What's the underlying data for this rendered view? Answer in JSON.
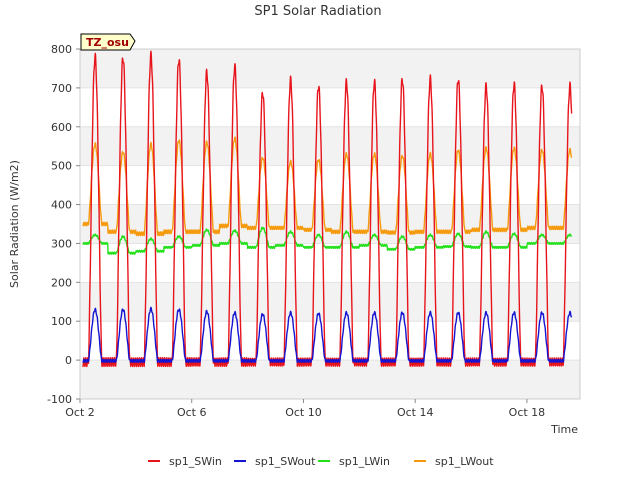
{
  "chart_data": {
    "type": "line",
    "title": "SP1 Solar Radiation",
    "xlabel": "Time",
    "ylabel": "Solar Radiation (W/m2)",
    "badge": "TZ_osu",
    "xlim": [
      2.0,
      19.9
    ],
    "ylim": [
      -100,
      800
    ],
    "yticks": [
      -100,
      0,
      100,
      200,
      300,
      400,
      500,
      600,
      700,
      800
    ],
    "ytick_labels": [
      "-100",
      "0",
      "100",
      "200",
      "300",
      "400",
      "500",
      "600",
      "700",
      "800"
    ],
    "xticks": [
      2,
      6,
      10,
      14,
      18
    ],
    "xtick_labels": [
      "Oct 2",
      "Oct 6",
      "Oct 10",
      "Oct 14",
      "Oct 18"
    ],
    "grid_bands": true,
    "legend_position": "bottom",
    "series": [
      {
        "name": "sp1_SWin",
        "color": "#e8141c",
        "day_peaks": [
          780,
          778,
          783,
          773,
          740,
          755,
          688,
          720,
          705,
          715,
          715,
          722,
          723,
          722,
          705,
          710,
          705
        ],
        "night_value": -5
      },
      {
        "name": "sp1_SWout",
        "color": "#1414d2",
        "day_peaks": [
          130,
          130,
          132,
          130,
          125,
          122,
          118,
          122,
          120,
          122,
          122,
          122,
          122,
          122,
          122,
          122,
          122
        ],
        "night_value": -2
      },
      {
        "name": "sp1_LWin",
        "color": "#22e01a",
        "day_peaks": [
          322,
          318,
          312,
          318,
          335,
          333,
          340,
          330,
          322,
          330,
          322,
          318,
          322,
          325,
          330,
          325,
          322
        ],
        "night_value": [
          300,
          275,
          280,
          290,
          295,
          300,
          290,
          295,
          290,
          290,
          295,
          285,
          290,
          292,
          290,
          290,
          300
        ]
      },
      {
        "name": "sp1_LWout",
        "color": "#f59a0c",
        "day_peaks": [
          555,
          535,
          555,
          565,
          560,
          570,
          520,
          510,
          515,
          530,
          530,
          525,
          530,
          540,
          545,
          545,
          540
        ],
        "night_value": [
          350,
          330,
          325,
          330,
          330,
          345,
          340,
          340,
          335,
          330,
          330,
          328,
          330,
          330,
          335,
          335,
          340
        ]
      }
    ]
  }
}
